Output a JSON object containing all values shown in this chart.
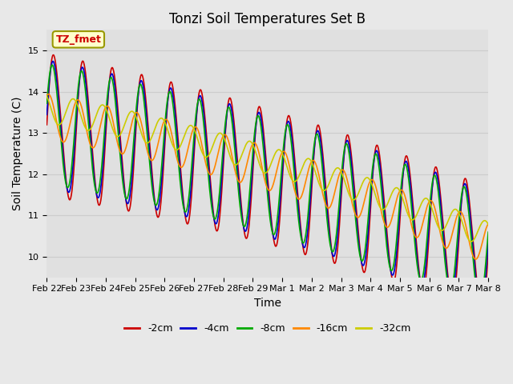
{
  "title": "Tonzi Soil Temperatures Set B",
  "xlabel": "Time",
  "ylabel": "Soil Temperature (C)",
  "ylim": [
    9.5,
    15.5
  ],
  "n_days": 15,
  "xtick_labels": [
    "Feb 22",
    "Feb 23",
    "Feb 24",
    "Feb 25",
    "Feb 26",
    "Feb 27",
    "Feb 28",
    "Feb 29",
    "Mar 1",
    "Mar 2",
    "Mar 3",
    "Mar 4",
    "Mar 5",
    "Mar 6",
    "Mar 7",
    "Mar 8"
  ],
  "legend_labels": [
    "-2cm",
    "-4cm",
    "-8cm",
    "-16cm",
    "-32cm"
  ],
  "line_colors": [
    "#cc0000",
    "#0000cc",
    "#00aa00",
    "#ff8800",
    "#cccc00"
  ],
  "annotation_text": "TZ_fmet",
  "annotation_bg": "#ffffcc",
  "annotation_border": "#999900",
  "annotation_color": "#cc0000",
  "grid_color": "#cccccc",
  "fig_bg": "#e8e8e8",
  "plot_bg": "#e0e0e0",
  "title_fontsize": 12,
  "axis_fontsize": 10,
  "tick_fontsize": 8,
  "legend_fontsize": 9
}
